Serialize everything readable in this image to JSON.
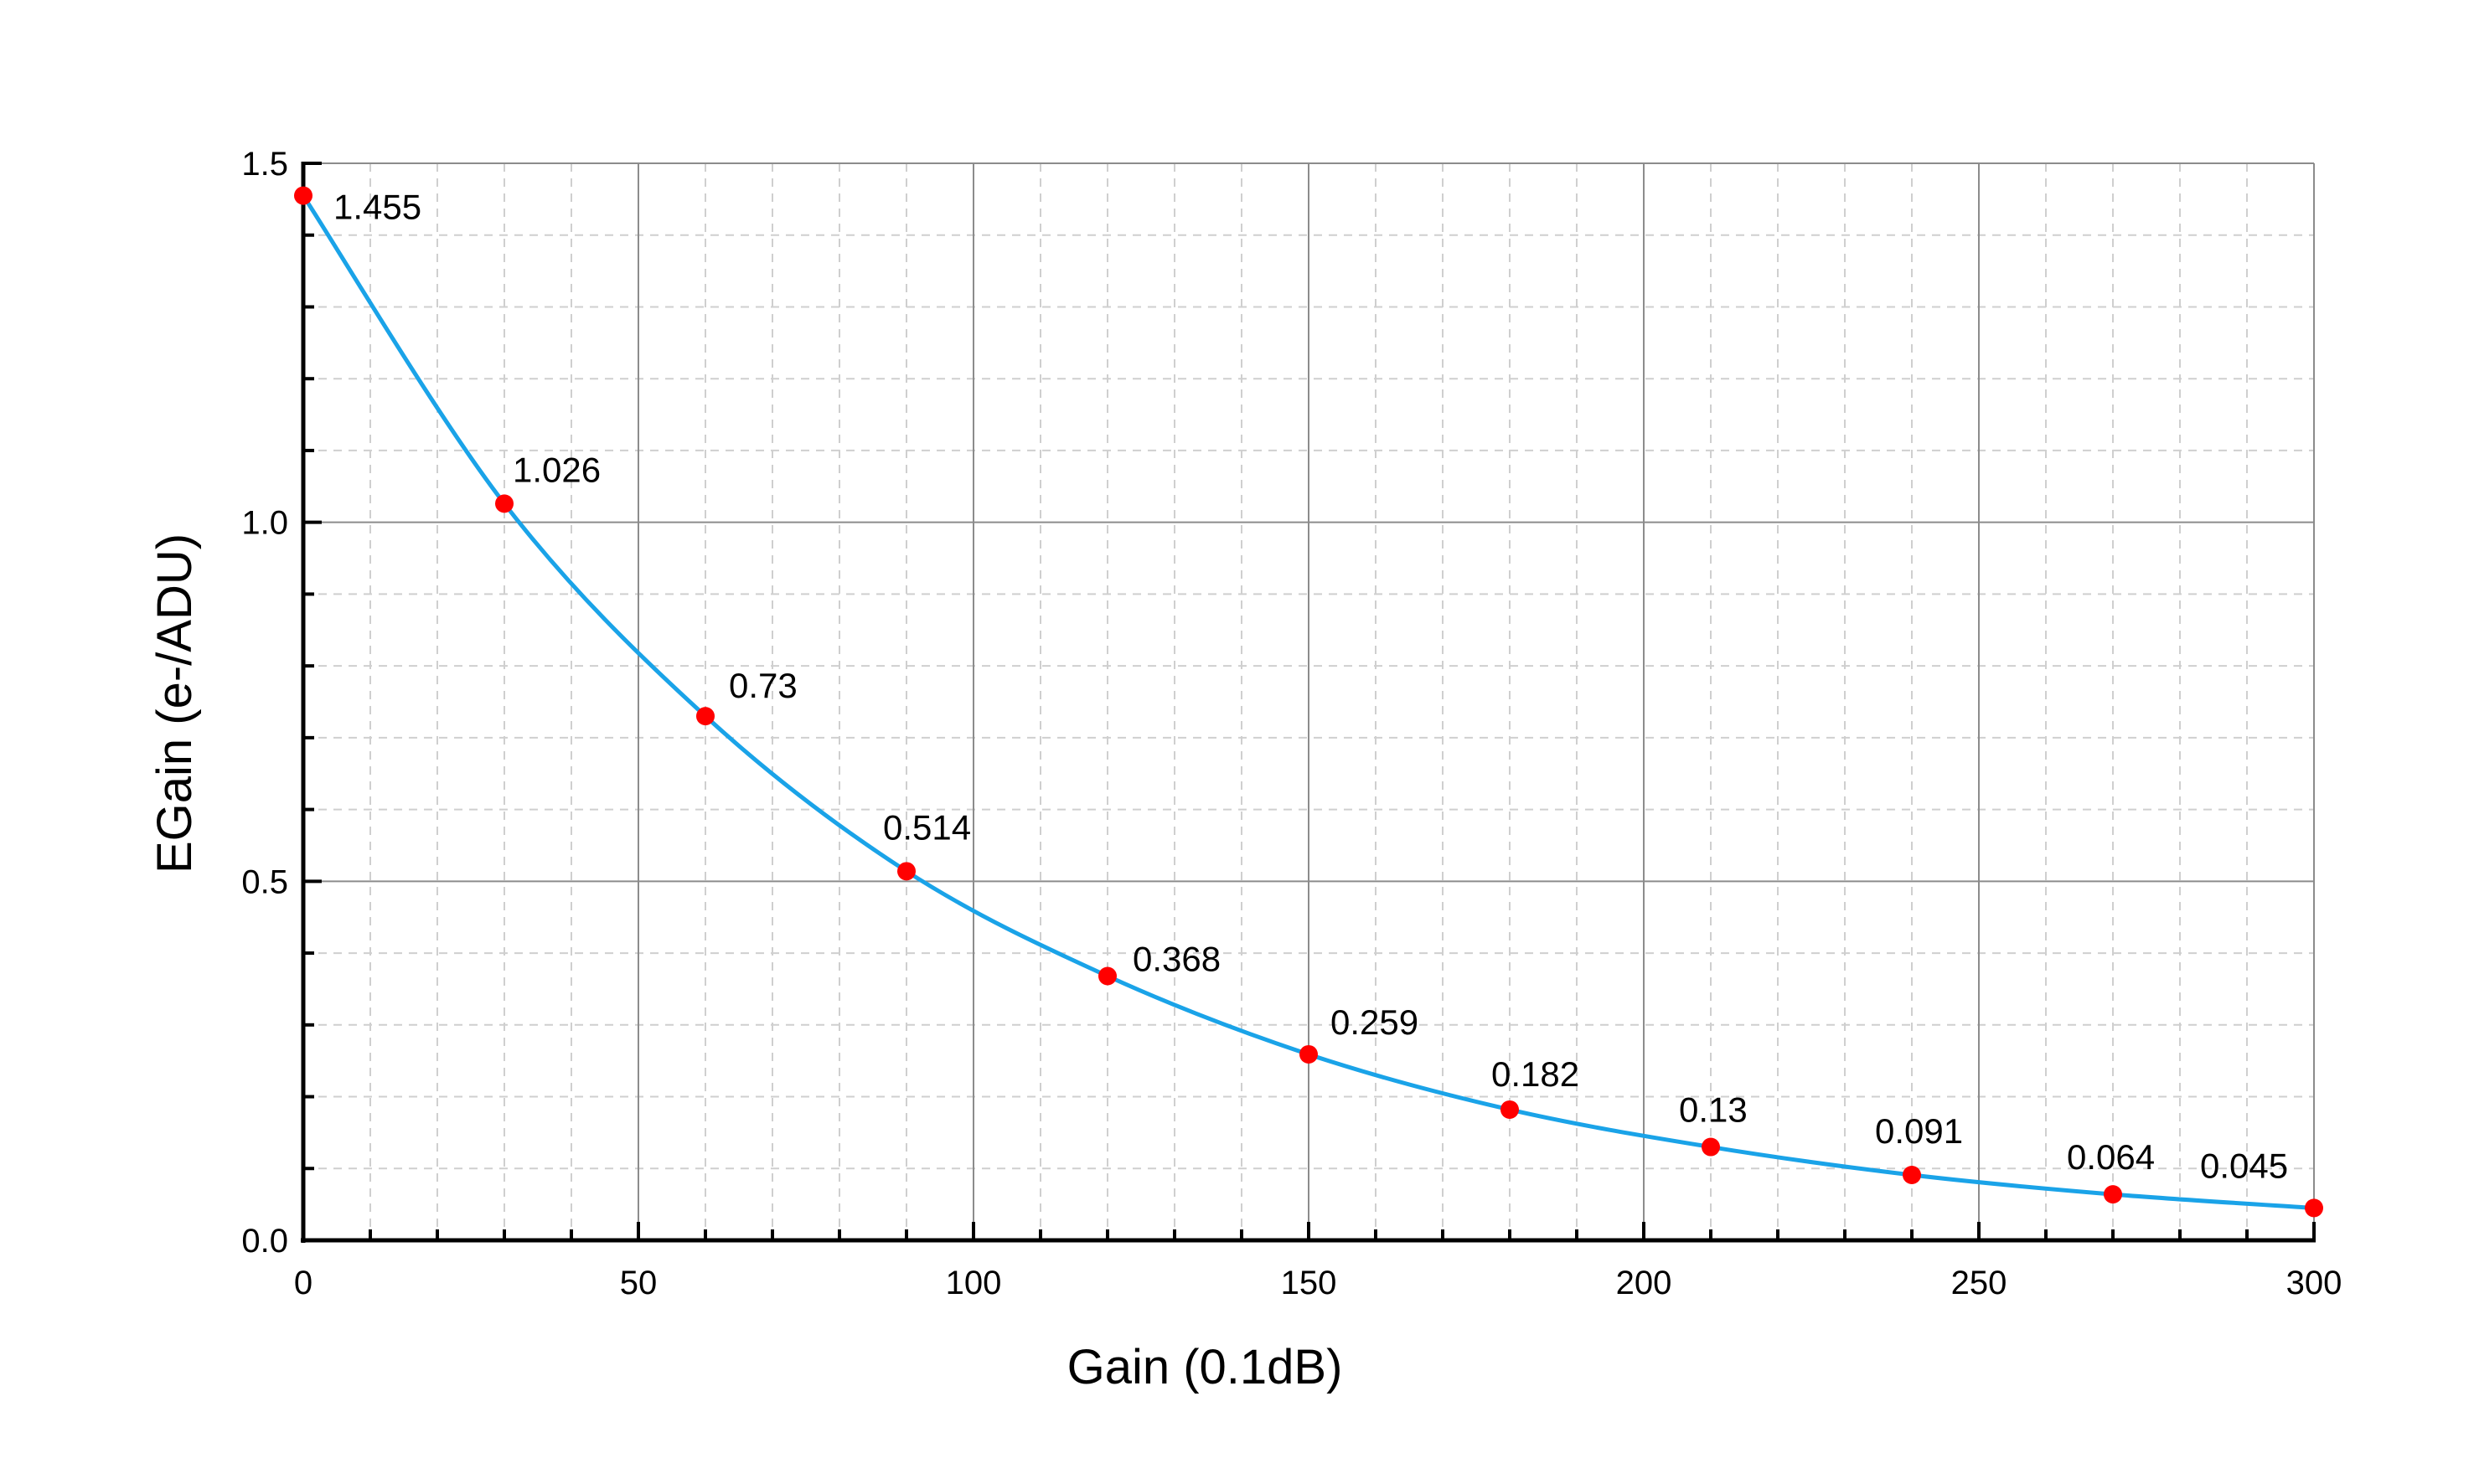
{
  "chart_data": {
    "type": "line",
    "xlabel": "Gain (0.1dB)",
    "ylabel": "EGain (e-/ADU)",
    "xlim": [
      0,
      300
    ],
    "ylim": [
      0,
      1.5
    ],
    "xticks": [
      "0",
      "50",
      "100",
      "150",
      "200",
      "250",
      "300"
    ],
    "yticks": [
      "0.0",
      "0.5",
      "1.0",
      "1.5"
    ],
    "grid": true,
    "line_color": "#1aa3e8",
    "marker_color": "#ff0000",
    "series": [
      {
        "x": [
          0,
          30,
          60,
          90,
          120,
          150,
          180,
          210,
          240,
          270,
          300
        ],
        "y": [
          1.455,
          1.026,
          0.73,
          0.514,
          0.368,
          0.259,
          0.182,
          0.13,
          0.091,
          0.064,
          0.045
        ],
        "labels": [
          "1.455",
          "1.026",
          "0.73",
          "0.514",
          "0.368",
          "0.259",
          "0.182",
          "0.13",
          "0.091",
          "0.064",
          "0.045"
        ]
      }
    ]
  }
}
